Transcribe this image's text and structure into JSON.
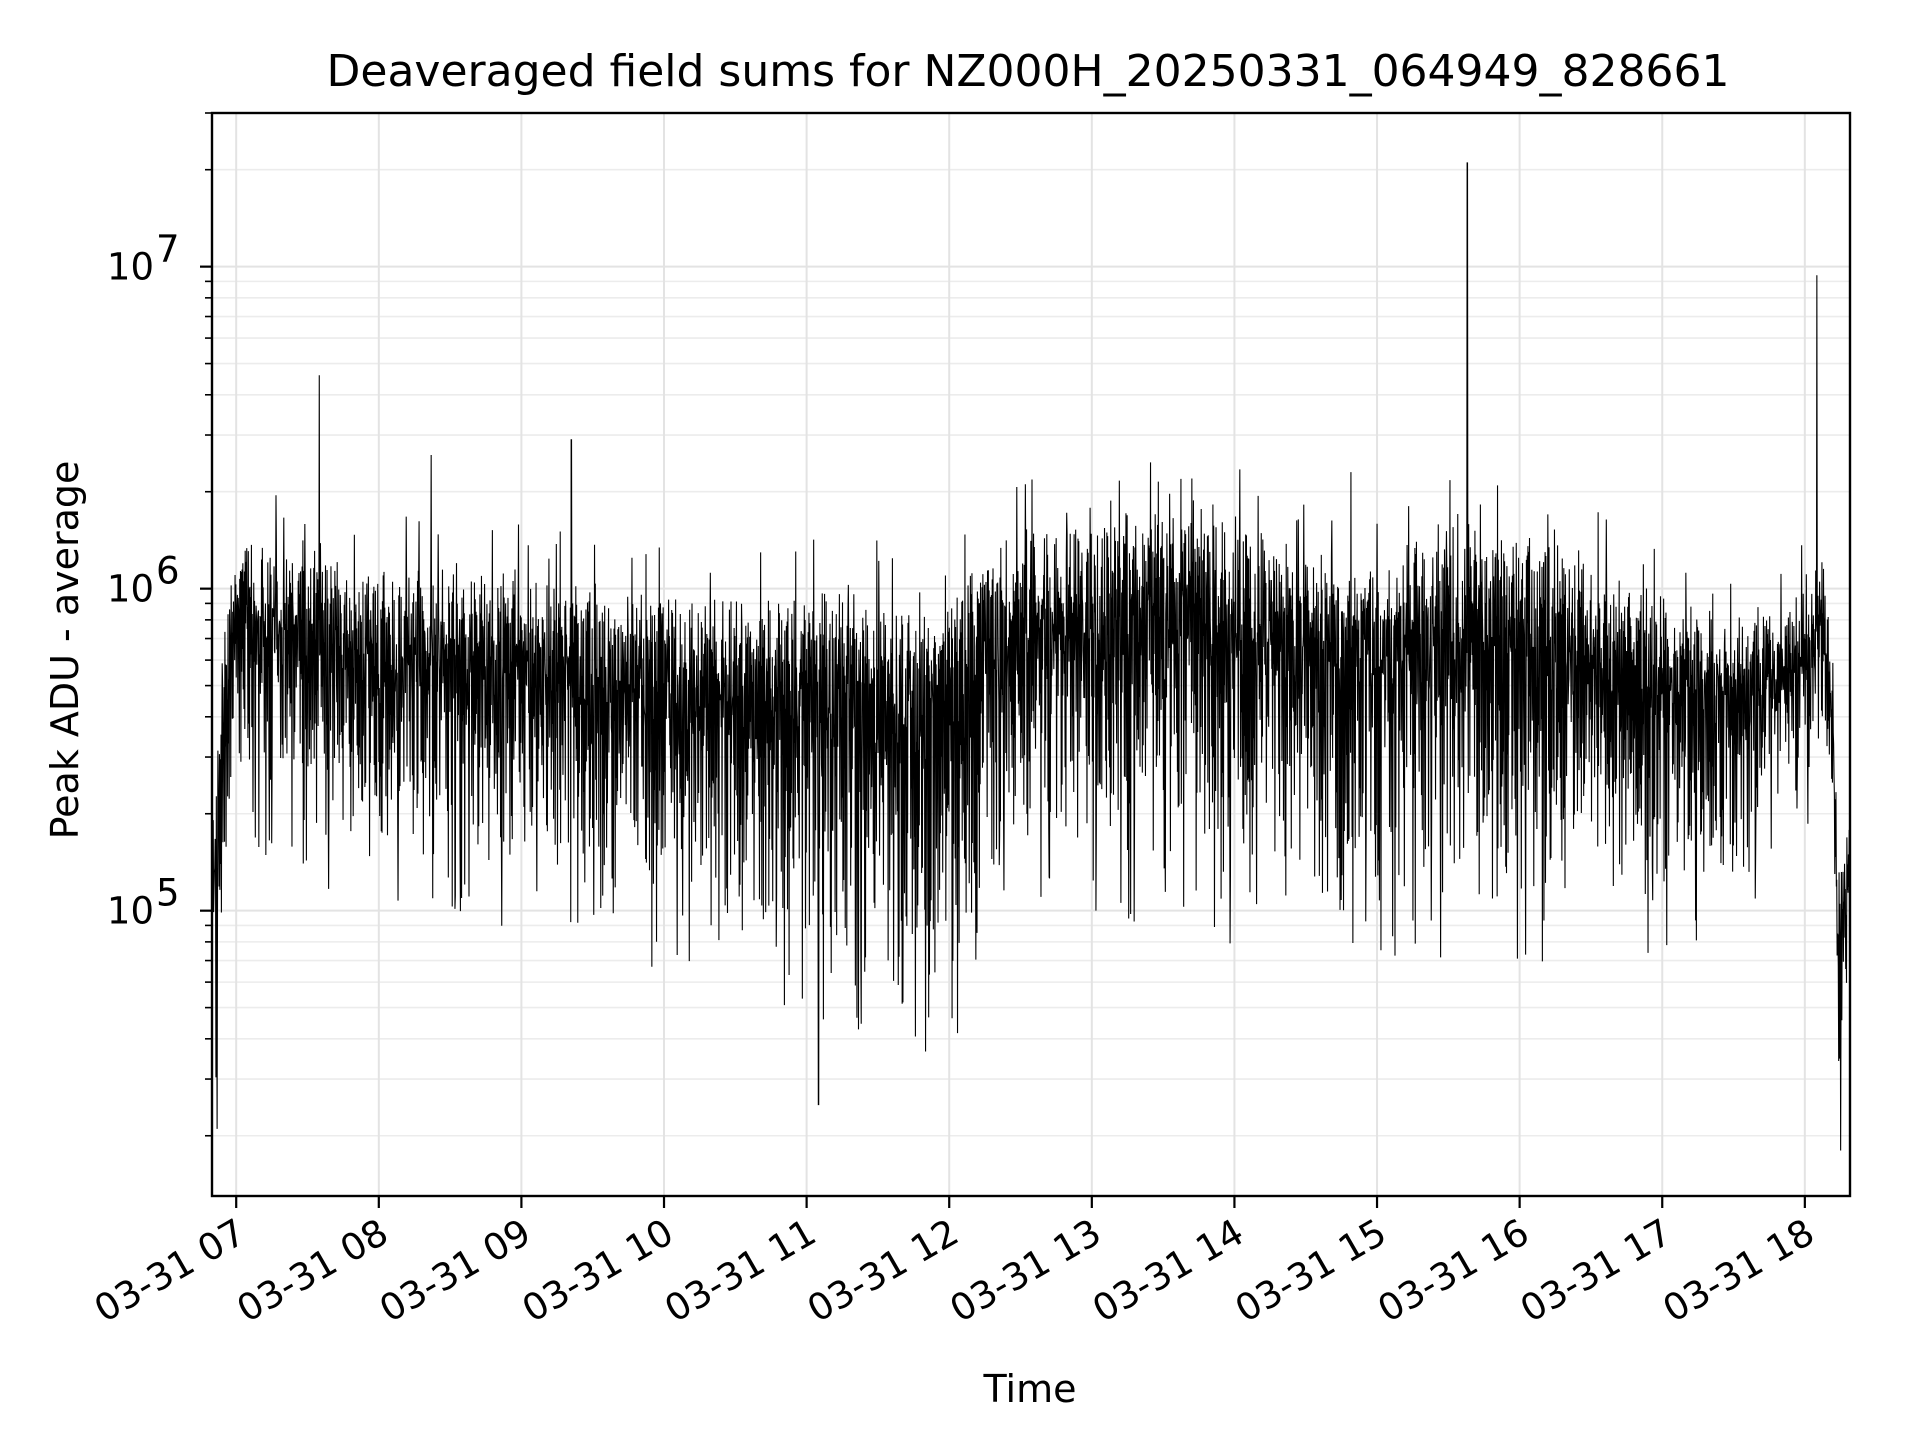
{
  "chart_data": {
    "type": "line",
    "title": "Deaveraged field sums for NZ000H_20250331_064949_828661",
    "xlabel": "Time",
    "ylabel": "Peak ADU - average",
    "yscale": "log",
    "ylim": [
      13000,
      30000000
    ],
    "xlim": [
      "2025-03-31 06:49:49",
      "2025-03-31 18:19:00"
    ],
    "x_ticks": [
      {
        "value": "2025-03-31 07:00",
        "label": "03-31 07"
      },
      {
        "value": "2025-03-31 08:00",
        "label": "03-31 08"
      },
      {
        "value": "2025-03-31 09:00",
        "label": "03-31 09"
      },
      {
        "value": "2025-03-31 10:00",
        "label": "03-31 10"
      },
      {
        "value": "2025-03-31 11:00",
        "label": "03-31 11"
      },
      {
        "value": "2025-03-31 12:00",
        "label": "03-31 12"
      },
      {
        "value": "2025-03-31 13:00",
        "label": "03-31 13"
      },
      {
        "value": "2025-03-31 14:00",
        "label": "03-31 14"
      },
      {
        "value": "2025-03-31 15:00",
        "label": "03-31 15"
      },
      {
        "value": "2025-03-31 16:00",
        "label": "03-31 16"
      },
      {
        "value": "2025-03-31 17:00",
        "label": "03-31 17"
      },
      {
        "value": "2025-03-31 18:00",
        "label": "03-31 18"
      }
    ],
    "y_ticks": [
      {
        "value": 100000,
        "label_base": "10",
        "label_exp": "5"
      },
      {
        "value": 1000000,
        "label_base": "10",
        "label_exp": "6"
      },
      {
        "value": 10000000,
        "label_base": "10",
        "label_exp": "7"
      }
    ],
    "grid": true,
    "series": [
      {
        "color": "#000000",
        "envelope": [
          {
            "time": "2025-03-31 06:50",
            "upper": 160000,
            "lower": 30000
          },
          {
            "time": "2025-03-31 06:56",
            "upper": 800000,
            "lower": 150000
          },
          {
            "time": "2025-03-31 07:00",
            "upper": 1200000,
            "lower": 250000
          },
          {
            "time": "2025-03-31 07:30",
            "upper": 1100000,
            "lower": 180000
          },
          {
            "time": "2025-03-31 08:00",
            "upper": 950000,
            "lower": 140000
          },
          {
            "time": "2025-03-31 08:30",
            "upper": 1000000,
            "lower": 140000
          },
          {
            "time": "2025-03-31 09:00",
            "upper": 900000,
            "lower": 130000
          },
          {
            "time": "2025-03-31 09:30",
            "upper": 850000,
            "lower": 120000
          },
          {
            "time": "2025-03-31 10:00",
            "upper": 780000,
            "lower": 100000
          },
          {
            "time": "2025-03-31 10:30",
            "upper": 800000,
            "lower": 90000
          },
          {
            "time": "2025-03-31 11:00",
            "upper": 850000,
            "lower": 70000
          },
          {
            "time": "2025-03-31 11:30",
            "upper": 800000,
            "lower": 50000
          },
          {
            "time": "2025-03-31 12:00",
            "upper": 800000,
            "lower": 55000
          },
          {
            "time": "2025-03-31 12:20",
            "upper": 1200000,
            "lower": 150000
          },
          {
            "time": "2025-03-31 13:00",
            "upper": 1350000,
            "lower": 150000
          },
          {
            "time": "2025-03-31 13:40",
            "upper": 1500000,
            "lower": 120000
          },
          {
            "time": "2025-03-31 14:00",
            "upper": 1400000,
            "lower": 110000
          },
          {
            "time": "2025-03-31 14:30",
            "upper": 1100000,
            "lower": 120000
          },
          {
            "time": "2025-03-31 15:00",
            "upper": 1000000,
            "lower": 110000
          },
          {
            "time": "2025-03-31 15:30",
            "upper": 1350000,
            "lower": 100000
          },
          {
            "time": "2025-03-31 16:00",
            "upper": 1200000,
            "lower": 100000
          },
          {
            "time": "2025-03-31 16:30",
            "upper": 1000000,
            "lower": 100000
          },
          {
            "time": "2025-03-31 17:00",
            "upper": 800000,
            "lower": 110000
          },
          {
            "time": "2025-03-31 17:30",
            "upper": 700000,
            "lower": 120000
          },
          {
            "time": "2025-03-31 18:00",
            "upper": 800000,
            "lower": 250000
          },
          {
            "time": "2025-03-31 18:08",
            "upper": 1100000,
            "lower": 350000
          },
          {
            "time": "2025-03-31 18:12",
            "upper": 400000,
            "lower": 200000
          },
          {
            "time": "2025-03-31 18:14",
            "upper": 120000,
            "lower": 30000
          },
          {
            "time": "2025-03-31 18:19",
            "upper": 170000,
            "lower": 60000
          }
        ],
        "spikes": [
          {
            "time": "2025-03-31 07:35",
            "value": 4600000
          },
          {
            "time": "2025-03-31 08:22",
            "value": 2600000
          },
          {
            "time": "2025-03-31 09:21",
            "value": 2900000
          },
          {
            "time": "2025-03-31 14:49",
            "value": 2300000
          },
          {
            "time": "2025-03-31 15:38",
            "value": 21000000
          },
          {
            "time": "2025-03-31 18:05",
            "value": 9400000
          },
          {
            "time": "2025-03-31 06:52",
            "value": 21000
          },
          {
            "time": "2025-03-31 11:05",
            "value": 25000
          },
          {
            "time": "2025-03-31 18:15",
            "value": 18000
          }
        ]
      }
    ]
  }
}
